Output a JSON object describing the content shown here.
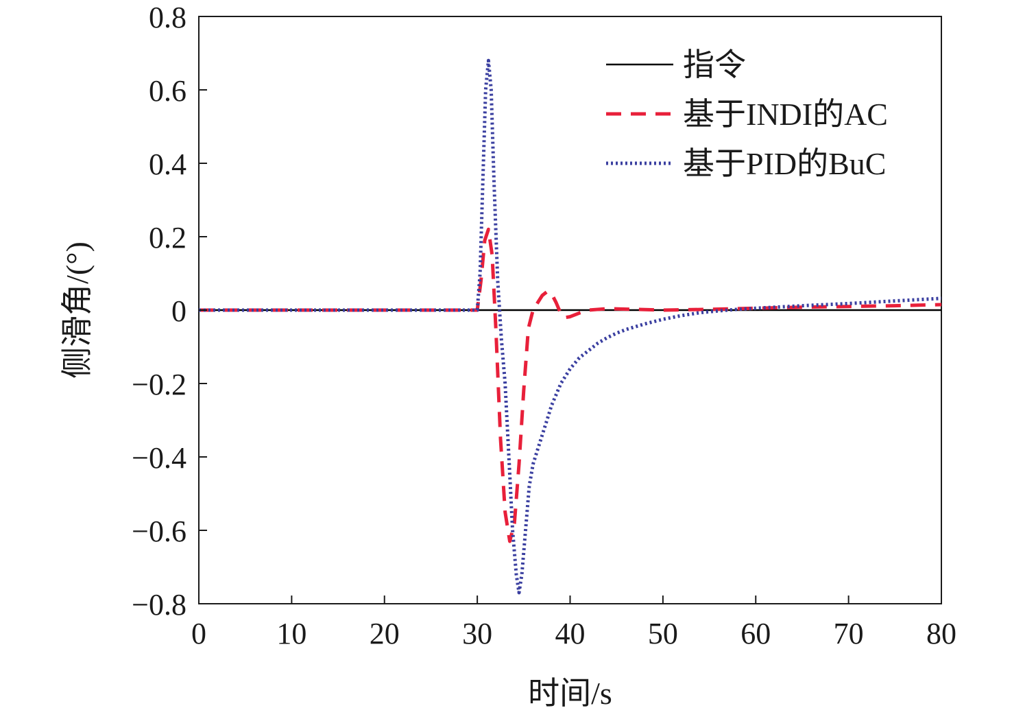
{
  "chart_data": {
    "type": "line",
    "xlabel": "时间/s",
    "ylabel": "侧滑角/(°)",
    "xlim": [
      0,
      80
    ],
    "ylim": [
      -0.8,
      0.8
    ],
    "x_ticks": [
      "0",
      "10",
      "20",
      "30",
      "40",
      "50",
      "60",
      "70",
      "80"
    ],
    "y_ticks": [
      "0.8",
      "0.6",
      "0.4",
      "0.2",
      "0",
      "−0.2",
      "−0.4",
      "−0.6",
      "−0.8"
    ],
    "grid": false,
    "legend_position": "top-right",
    "series": [
      {
        "name": "指令",
        "color": "#000000",
        "style": "solid",
        "x": [
          0,
          80
        ],
        "y": [
          0,
          0
        ]
      },
      {
        "name": "基于INDI的AC",
        "color": "#e8203a",
        "style": "dashed",
        "x": [
          0,
          30,
          30.4,
          30.8,
          31.2,
          31.6,
          32.0,
          32.5,
          33.0,
          33.5,
          34.0,
          34.5,
          35.0,
          35.5,
          36.0,
          36.5,
          37.0,
          37.5,
          38.0,
          38.5,
          39.0,
          39.5,
          40.0,
          41.0,
          42.0,
          44.0,
          47.0,
          50.0,
          55.0,
          60.0,
          65.0,
          70.0,
          75.0,
          80.0
        ],
        "y": [
          0,
          0,
          0.08,
          0.19,
          0.22,
          0.15,
          -0.05,
          -0.35,
          -0.55,
          -0.63,
          -0.58,
          -0.42,
          -0.22,
          -0.05,
          0.0,
          0.02,
          0.04,
          0.05,
          0.045,
          0.02,
          -0.01,
          -0.02,
          -0.018,
          -0.008,
          0.0,
          0.004,
          0.002,
          0.0,
          0.002,
          0.005,
          0.008,
          0.01,
          0.012,
          0.015
        ]
      },
      {
        "name": "基于PID的BuC",
        "color": "#3a3fa0",
        "style": "dotted",
        "x": [
          0,
          30,
          30.3,
          30.6,
          30.9,
          31.2,
          31.5,
          31.8,
          32.2,
          32.6,
          33.0,
          33.4,
          33.8,
          34.2,
          34.5,
          34.8,
          35.2,
          35.6,
          36.0,
          36.5,
          37.0,
          37.5,
          38.0,
          39.0,
          40.0,
          41.0,
          42.0,
          43.0,
          44.0,
          45.0,
          46.0,
          48.0,
          50.0,
          52.0,
          54.0,
          56.0,
          58.0,
          60.0,
          65.0,
          70.0,
          75.0,
          80.0
        ],
        "y": [
          0,
          0,
          0.1,
          0.35,
          0.6,
          0.68,
          0.6,
          0.35,
          0.08,
          -0.08,
          -0.2,
          -0.4,
          -0.6,
          -0.72,
          -0.77,
          -0.72,
          -0.6,
          -0.48,
          -0.42,
          -0.38,
          -0.34,
          -0.3,
          -0.26,
          -0.2,
          -0.16,
          -0.13,
          -0.11,
          -0.09,
          -0.075,
          -0.063,
          -0.053,
          -0.038,
          -0.025,
          -0.015,
          -0.007,
          -0.002,
          0.002,
          0.005,
          0.012,
          0.018,
          0.025,
          0.032
        ]
      }
    ]
  }
}
